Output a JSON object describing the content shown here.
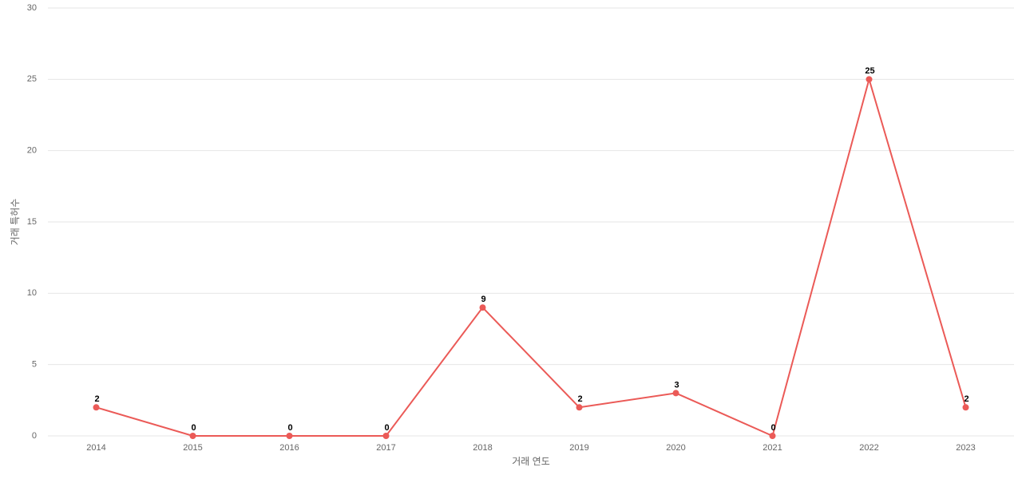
{
  "chart_data": {
    "type": "line",
    "x_label": "거래 연도",
    "y_label": "거래 특허수",
    "categories": [
      "2014",
      "2015",
      "2016",
      "2017",
      "2018",
      "2019",
      "2020",
      "2021",
      "2022",
      "2023"
    ],
    "values": [
      2,
      0,
      0,
      0,
      9,
      2,
      3,
      0,
      25,
      2
    ],
    "color": "#eb5a57",
    "ylim": [
      0,
      30
    ],
    "yticks": [
      0,
      5,
      10,
      15,
      20,
      25,
      30
    ],
    "grid": true
  }
}
